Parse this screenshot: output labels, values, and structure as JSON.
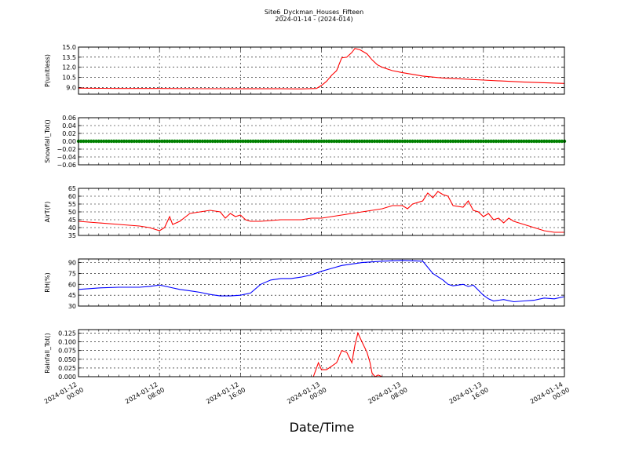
{
  "figure": {
    "title": "Site6_Dyckman_Houses_Fifteen",
    "subtitle": "2024-01-14 - (2024-014)",
    "xlabel": "Date/Time"
  },
  "chart_data": [
    {
      "type": "line",
      "ylabel": "P(unitless)",
      "ylim": [
        8.0,
        15.0
      ],
      "yticks": [
        "9.0",
        "10.5",
        "12.0",
        "13.5",
        "15.0"
      ],
      "ytick_values": [
        9.0,
        10.5,
        12.0,
        13.5,
        15.0
      ],
      "grid": true,
      "color": "#ff0000",
      "points": [
        [
          0,
          8.9
        ],
        [
          4,
          8.85
        ],
        [
          8,
          8.85
        ],
        [
          12,
          8.82
        ],
        [
          16,
          8.8
        ],
        [
          20,
          8.8
        ],
        [
          22,
          8.78
        ],
        [
          23.5,
          8.85
        ],
        [
          24,
          9.3
        ],
        [
          24.5,
          9.9
        ],
        [
          25,
          10.8
        ],
        [
          25.5,
          11.5
        ],
        [
          26,
          13.4
        ],
        [
          26.5,
          13.5
        ],
        [
          27,
          14.2
        ],
        [
          27.3,
          14.8
        ],
        [
          27.8,
          14.6
        ],
        [
          28.5,
          14.0
        ],
        [
          29,
          13.1
        ],
        [
          29.5,
          12.4
        ],
        [
          30,
          12.0
        ],
        [
          31,
          11.5
        ],
        [
          32,
          11.2
        ],
        [
          34,
          10.7
        ],
        [
          36,
          10.4
        ],
        [
          40,
          10.1
        ],
        [
          44,
          9.8
        ],
        [
          48,
          9.6
        ]
      ]
    },
    {
      "type": "scatter",
      "ylabel": "Snowfall_Tot()",
      "ylim": [
        -0.06,
        0.06
      ],
      "yticks": [
        "−0.06",
        "−0.04",
        "−0.02",
        "0.00",
        "0.02",
        "0.04",
        "0.06"
      ],
      "ytick_values": [
        -0.06,
        -0.04,
        -0.02,
        0.0,
        0.02,
        0.04,
        0.06
      ],
      "grid": true,
      "color": "#008000",
      "constant_value": 0.0,
      "x_range": [
        0,
        48
      ]
    },
    {
      "type": "line",
      "ylabel": "AirT(F)",
      "ylim": [
        35,
        65
      ],
      "yticks": [
        "35",
        "40",
        "45",
        "50",
        "55",
        "60",
        "65"
      ],
      "ytick_values": [
        35,
        40,
        45,
        50,
        55,
        60,
        65
      ],
      "grid": true,
      "color": "#ff0000",
      "points": [
        [
          0,
          44
        ],
        [
          2,
          43
        ],
        [
          4,
          42
        ],
        [
          6,
          41
        ],
        [
          7,
          40
        ],
        [
          8,
          38
        ],
        [
          8.5,
          40
        ],
        [
          9,
          47
        ],
        [
          9.3,
          42
        ],
        [
          10,
          44
        ],
        [
          11,
          49
        ],
        [
          12,
          50
        ],
        [
          13,
          51
        ],
        [
          14,
          50
        ],
        [
          14.5,
          46
        ],
        [
          15,
          49
        ],
        [
          15.5,
          47
        ],
        [
          16,
          48
        ],
        [
          16.5,
          45
        ],
        [
          17,
          44
        ],
        [
          18,
          44
        ],
        [
          20,
          45
        ],
        [
          22,
          45
        ],
        [
          23,
          46
        ],
        [
          24,
          46
        ],
        [
          26,
          48
        ],
        [
          28,
          50
        ],
        [
          29,
          51
        ],
        [
          30,
          52
        ],
        [
          31,
          54
        ],
        [
          32,
          54
        ],
        [
          32.5,
          52
        ],
        [
          33,
          55
        ],
        [
          34,
          57
        ],
        [
          34.5,
          62
        ],
        [
          35,
          59
        ],
        [
          35.5,
          63
        ],
        [
          36,
          61
        ],
        [
          36.5,
          60
        ],
        [
          37,
          54
        ],
        [
          38,
          53
        ],
        [
          38.5,
          57
        ],
        [
          39,
          51
        ],
        [
          39.5,
          50
        ],
        [
          40,
          47
        ],
        [
          40.5,
          49
        ],
        [
          41,
          45
        ],
        [
          41.5,
          46
        ],
        [
          42,
          43
        ],
        [
          42.5,
          46
        ],
        [
          43,
          44
        ],
        [
          44,
          42
        ],
        [
          45,
          40
        ],
        [
          46,
          38
        ],
        [
          47,
          37
        ],
        [
          48,
          37
        ]
      ]
    },
    {
      "type": "line",
      "ylabel": "RH(%)",
      "ylim": [
        30,
        95
      ],
      "yticks": [
        "30",
        "45",
        "60",
        "75",
        "90"
      ],
      "ytick_values": [
        30,
        45,
        60,
        75,
        90
      ],
      "grid": true,
      "color": "#0000ff",
      "points": [
        [
          0,
          53
        ],
        [
          2,
          55
        ],
        [
          4,
          56
        ],
        [
          6,
          56
        ],
        [
          7,
          57
        ],
        [
          8,
          59
        ],
        [
          9,
          56
        ],
        [
          10,
          53
        ],
        [
          11,
          51
        ],
        [
          12,
          49
        ],
        [
          13,
          46
        ],
        [
          14,
          44
        ],
        [
          15,
          44
        ],
        [
          16,
          45
        ],
        [
          17,
          48
        ],
        [
          18,
          60
        ],
        [
          19,
          66
        ],
        [
          20,
          68
        ],
        [
          21,
          68
        ],
        [
          22,
          70
        ],
        [
          23,
          73
        ],
        [
          24,
          78
        ],
        [
          25,
          82
        ],
        [
          26,
          86
        ],
        [
          28,
          90
        ],
        [
          30,
          92
        ],
        [
          32,
          93
        ],
        [
          34,
          92
        ],
        [
          35,
          75
        ],
        [
          36,
          66
        ],
        [
          36.5,
          60
        ],
        [
          37,
          58
        ],
        [
          38,
          60
        ],
        [
          38.5,
          57
        ],
        [
          39,
          59
        ],
        [
          40,
          45
        ],
        [
          40.5,
          40
        ],
        [
          41,
          37
        ],
        [
          42,
          39
        ],
        [
          43,
          36
        ],
        [
          44,
          37
        ],
        [
          45,
          38
        ],
        [
          46,
          41
        ],
        [
          47,
          40
        ],
        [
          48,
          43
        ]
      ]
    },
    {
      "type": "line",
      "ylabel": "Rainfall_Tot()",
      "ylim": [
        0.0,
        0.135
      ],
      "yticks": [
        "0.000",
        "0.025",
        "0.050",
        "0.075",
        "0.100",
        "0.125"
      ],
      "ytick_values": [
        0.0,
        0.025,
        0.05,
        0.075,
        0.1,
        0.125
      ],
      "grid": true,
      "color": "#ff0000",
      "points": [
        [
          0,
          0
        ],
        [
          23.2,
          0
        ],
        [
          23.7,
          0.04
        ],
        [
          24,
          0.02
        ],
        [
          24.5,
          0.02
        ],
        [
          25,
          0.03
        ],
        [
          25.5,
          0.04
        ],
        [
          26,
          0.075
        ],
        [
          26.5,
          0.07
        ],
        [
          27,
          0.04
        ],
        [
          27.3,
          0.09
        ],
        [
          27.6,
          0.125
        ],
        [
          28,
          0.1
        ],
        [
          28.5,
          0.07
        ],
        [
          28.8,
          0.04
        ],
        [
          29,
          0.01
        ],
        [
          29.3,
          0.0
        ],
        [
          29.6,
          0.005
        ],
        [
          30,
          0
        ],
        [
          48,
          0
        ]
      ]
    }
  ],
  "xaxis": {
    "range_hours": [
      0,
      48
    ],
    "tick_hours": [
      0,
      8,
      16,
      24,
      32,
      40,
      48
    ],
    "tick_labels": [
      [
        "2024-01-12",
        "00:00"
      ],
      [
        "2024-01-12",
        "08:00"
      ],
      [
        "2024-01-12",
        "16:00"
      ],
      [
        "2024-01-13",
        "00:00"
      ],
      [
        "2024-01-13",
        "08:00"
      ],
      [
        "2024-01-13",
        "16:00"
      ],
      [
        "2024-01-14",
        "00:00"
      ]
    ]
  }
}
